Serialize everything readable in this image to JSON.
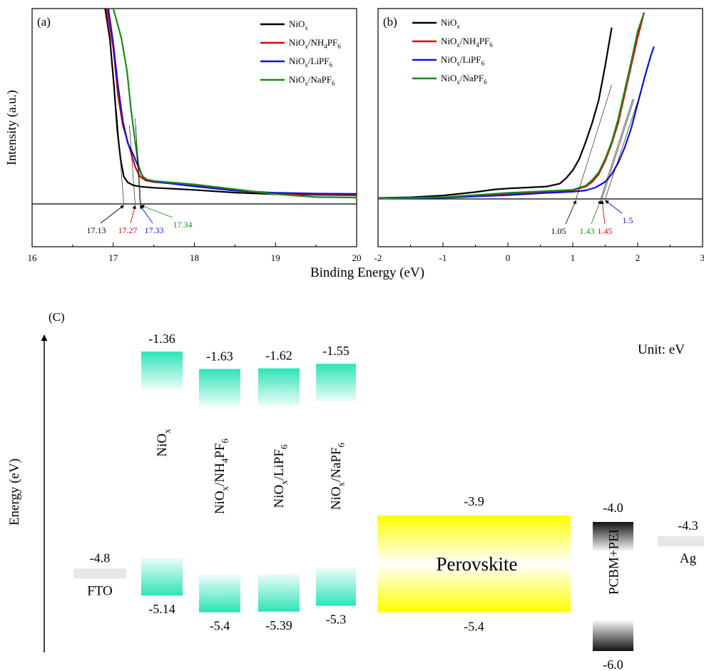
{
  "chart_data": [
    {
      "type": "line",
      "panel": "(a)",
      "ylabel": "Intensity (a.u.)",
      "xlim": [
        16,
        20
      ],
      "xticks": [
        "16",
        "17",
        "18",
        "19",
        "20"
      ],
      "series": [
        {
          "name": "NiOx",
          "color": "#000000",
          "x": [
            16.9,
            16.96,
            17.01,
            17.05,
            17.09,
            17.13,
            17.18,
            17.25,
            17.35,
            17.5,
            18.0,
            18.5,
            19.0,
            19.5,
            20.0
          ],
          "y": [
            100,
            84,
            60,
            38,
            23,
            14,
            11,
            9.5,
            8.8,
            8.3,
            7.2,
            5.8,
            5.0,
            4.7,
            4.5
          ]
        },
        {
          "name": "NiOx/NH4PF6",
          "color": "#e00000",
          "x": [
            16.92,
            17.0,
            17.06,
            17.12,
            17.17,
            17.22,
            17.27,
            17.33,
            17.4,
            17.5,
            18.0,
            18.5,
            19.0,
            19.5,
            20.0
          ],
          "y": [
            100,
            80,
            55,
            40,
            33,
            26,
            19,
            14,
            12,
            11.2,
            9.5,
            7.0,
            5.3,
            4.9,
            4.8
          ]
        },
        {
          "name": "NiOx/LiPF6",
          "color": "#1010e0",
          "x": [
            16.94,
            17.0,
            17.06,
            17.12,
            17.18,
            17.24,
            17.3,
            17.35,
            17.4,
            17.5,
            18.0,
            18.5,
            19.0,
            19.5,
            20.0
          ],
          "y": [
            100,
            82,
            60,
            42,
            31,
            26,
            20,
            15,
            12.5,
            11.5,
            9.0,
            6.8,
            5.7,
            5.3,
            5.2
          ]
        },
        {
          "name": "NiOx/NaPF6",
          "color": "#1a8a1a",
          "x": [
            17.0,
            17.1,
            17.17,
            17.22,
            17.27,
            17.31,
            17.36,
            17.42,
            17.5,
            18.0,
            18.5,
            19.0,
            19.5,
            20.0
          ],
          "y": [
            100,
            85,
            68,
            48,
            32,
            20,
            14,
            12.5,
            11.8,
            10.0,
            7.5,
            5.0,
            3.5,
            3.3
          ]
        }
      ],
      "legend_position": "top-right",
      "annotations": [
        {
          "text": "17.13",
          "color": "#000000",
          "x": 17.13
        },
        {
          "text": "17.27",
          "color": "#e00000",
          "x": 17.27
        },
        {
          "text": "17.33",
          "color": "#1010e0",
          "x": 17.33
        },
        {
          "text": "17.34",
          "color": "#1a8a1a",
          "x": 17.34
        }
      ]
    },
    {
      "type": "line",
      "panel": "(b)",
      "xlim": [
        -2,
        3
      ],
      "xticks": [
        "-2",
        "-1",
        "0",
        "1",
        "2",
        "3"
      ],
      "series": [
        {
          "name": "NiOx",
          "color": "#000000",
          "x": [
            -2.0,
            -1.5,
            -1.0,
            -0.5,
            -0.2,
            0.0,
            0.3,
            0.6,
            0.8,
            0.9,
            1.0,
            1.1,
            1.2,
            1.3,
            1.4,
            1.5,
            1.6
          ],
          "y": [
            0.5,
            0.9,
            1.8,
            3.6,
            5.0,
            5.5,
            6.0,
            6.5,
            8.0,
            11.0,
            15.0,
            21.0,
            30.0,
            40.0,
            52.0,
            70.0,
            90.0
          ]
        },
        {
          "name": "NiOx/NH4PF6",
          "color": "#e00000",
          "x": [
            -2.0,
            -1.0,
            0.0,
            0.5,
            1.0,
            1.2,
            1.3,
            1.4,
            1.5,
            1.6,
            1.7,
            1.8,
            1.9,
            2.0,
            2.1
          ],
          "y": [
            0.3,
            0.8,
            2.5,
            3.5,
            4.5,
            6.5,
            9.0,
            13.0,
            20.0,
            29.0,
            40.0,
            55.0,
            70.0,
            85.0,
            98.0
          ]
        },
        {
          "name": "NiOx/LiPF6",
          "color": "#1010e0",
          "x": [
            -2.0,
            -1.0,
            0.0,
            0.5,
            1.0,
            1.2,
            1.35,
            1.5,
            1.6,
            1.7,
            1.8,
            1.9,
            2.0,
            2.1,
            2.2,
            2.25
          ],
          "y": [
            0.2,
            0.6,
            2.0,
            3.0,
            3.8,
            4.5,
            6.0,
            9.0,
            13.0,
            19.0,
            27.0,
            37.0,
            50.0,
            63.0,
            75.0,
            80.0
          ]
        },
        {
          "name": "NiOx/NaPF6",
          "color": "#1a8a1a",
          "x": [
            -2.0,
            -1.0,
            0.0,
            0.5,
            1.0,
            1.2,
            1.3,
            1.4,
            1.5,
            1.6,
            1.7,
            1.8,
            1.9,
            2.0,
            2.1
          ],
          "y": [
            0.3,
            0.9,
            3.2,
            4.0,
            4.8,
            7.0,
            10.0,
            14.0,
            21.0,
            30.0,
            42.0,
            57.0,
            72.0,
            88.0,
            98.0
          ]
        }
      ],
      "legend_position": "top-left",
      "annotations": [
        {
          "text": "1.05",
          "color": "#000000",
          "x": 1.05
        },
        {
          "text": "1.43",
          "color": "#1a8a1a",
          "x": 1.43
        },
        {
          "text": "1.45",
          "color": "#e00000",
          "x": 1.45
        },
        {
          "text": "1.5",
          "color": "#1010e0",
          "x": 1.5
        }
      ]
    }
  ],
  "shared_xlabel": "Binding Energy (eV)",
  "diagram": {
    "panel": "(C)",
    "unit_label": "Unit: eV",
    "axis_label": "Energy (eV)",
    "vmin": -6.0,
    "vmax": -1.36,
    "layers": [
      {
        "name": "FTO",
        "type": "electrode",
        "level": -4.8,
        "level_label": "-4.8",
        "color": "#e6e6e6"
      },
      {
        "name": "NiOx",
        "type": "htl",
        "cb": -1.36,
        "vb": -5.14,
        "cb_label": "-1.36",
        "vb_label": "-5.14",
        "color": "#2ee3b8"
      },
      {
        "name": "NiOx/NH4PF6",
        "type": "htl",
        "cb": -1.63,
        "vb": -5.4,
        "cb_label": "-1.63",
        "vb_label": "-5.4",
        "color": "#2ee3b8"
      },
      {
        "name": "NiOx/LiPF6",
        "type": "htl",
        "cb": -1.62,
        "vb": -5.39,
        "cb_label": "-1.62",
        "vb_label": "-5.39",
        "color": "#2ee3b8"
      },
      {
        "name": "NiOx/NaPF6",
        "type": "htl",
        "cb": -1.55,
        "vb": -5.3,
        "cb_label": "-1.55",
        "vb_label": "-5.3",
        "color": "#2ee3b8"
      },
      {
        "name": "Perovskite",
        "type": "absorber",
        "cb": -3.9,
        "vb": -5.4,
        "cb_label": "-3.9",
        "vb_label": "-5.4",
        "color": "#ffff00"
      },
      {
        "name": "PCBM+PEI",
        "type": "etl",
        "cb": -4.0,
        "vb": -6.0,
        "cb_label": "-4.0",
        "vb_label": "-6.0",
        "color": "#111111"
      },
      {
        "name": "Ag",
        "type": "electrode",
        "level": -4.3,
        "level_label": "-4.3",
        "color": "#e6e6e6"
      }
    ]
  }
}
